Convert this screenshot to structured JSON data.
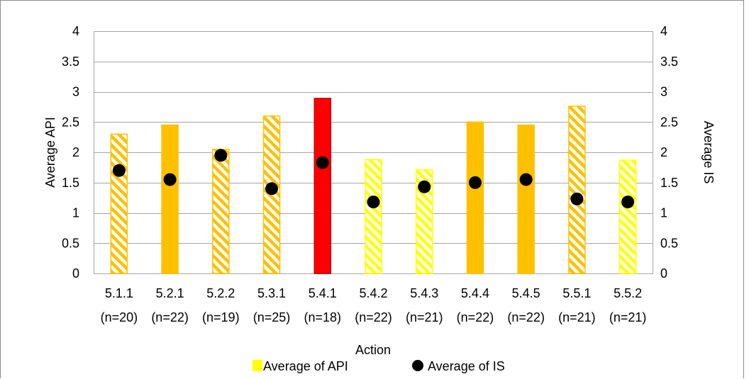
{
  "chart_data": {
    "type": "bar",
    "categories": [
      [
        "5.1.1",
        "(n=20)"
      ],
      [
        "5.2.1",
        "(n=22)"
      ],
      [
        "5.2.2",
        "(n=19)"
      ],
      [
        "5.3.1",
        "(n=25)"
      ],
      [
        "5.4.1",
        "(n=18)"
      ],
      [
        "5.4.2",
        "(n=22)"
      ],
      [
        "5.4.3",
        "(n=21)"
      ],
      [
        "5.4.4",
        "(n=22)"
      ],
      [
        "5.4.5",
        "(n=22)"
      ],
      [
        "5.5.1",
        "(n=21)"
      ],
      [
        "5.5.2",
        "(n=21)"
      ]
    ],
    "series": [
      {
        "name": "Average of API",
        "axis": "left",
        "kind": "bar",
        "values": [
          2.3,
          2.45,
          2.05,
          2.6,
          2.89,
          1.88,
          1.71,
          2.5,
          2.45,
          2.76,
          1.87
        ],
        "bar_styles": [
          "orange-hatched",
          "orange-solid",
          "orange-hatched",
          "orange-hatched",
          "red-solid",
          "yellow-hatched",
          "yellow-hatched",
          "orange-solid",
          "orange-solid",
          "orange-hatched",
          "yellow-hatched"
        ]
      },
      {
        "name": "Average of IS",
        "axis": "right",
        "kind": "point",
        "values": [
          1.7,
          1.55,
          1.95,
          1.4,
          1.83,
          1.18,
          1.43,
          1.5,
          1.55,
          1.23,
          1.18
        ]
      }
    ],
    "xlabel": "Action",
    "ylabel": "Average API",
    "y2label": "Average IS",
    "ylim": [
      0,
      4
    ],
    "y2lim": [
      0,
      4
    ],
    "yticks": [
      "0",
      "0.5",
      "1",
      "1.5",
      "2",
      "2.5",
      "3",
      "3.5",
      "4"
    ],
    "y2ticks": [
      "0",
      "0.5",
      "1",
      "1.5",
      "2",
      "2.5",
      "3",
      "3.5",
      "4"
    ],
    "grid": true,
    "legend_position": "bottom",
    "colors": {
      "orange": "#ffc000",
      "red": "#ff0000",
      "yellow": "#ffff00",
      "point": "#000000",
      "grid": "#a6a6a6"
    }
  }
}
